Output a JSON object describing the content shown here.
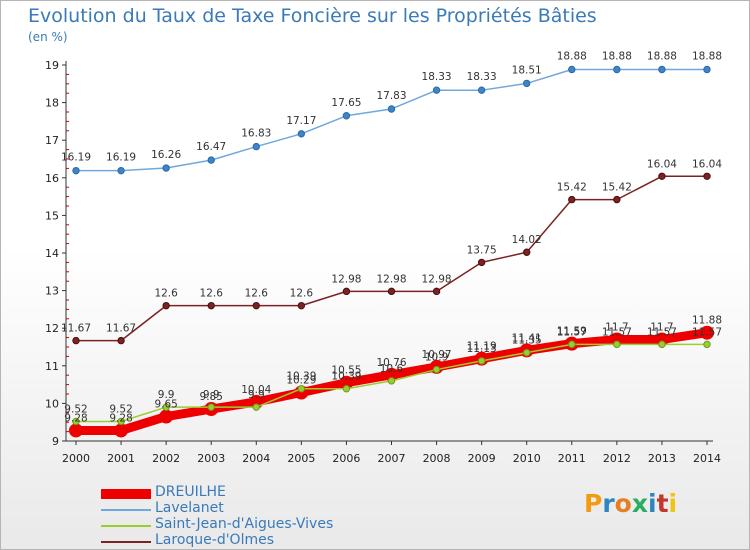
{
  "header": {
    "title": "Evolution du Taux de Taxe Foncière sur les Propriétés Bâties",
    "unit": "(en %)"
  },
  "logo": {
    "text": "Proxiti",
    "colors": [
      "#f39c12",
      "#2e86c1",
      "#e67e22",
      "#27ae60",
      "#2e86c1",
      "#c0392b",
      "#f1c40f"
    ]
  },
  "chart_data": {
    "type": "line",
    "title": "Evolution du Taux de Taxe Foncière sur les Propriétés Bâties",
    "ylabel": "(en %)",
    "xlabel": "",
    "x": [
      "2000",
      "2001",
      "2002",
      "2003",
      "2004",
      "2005",
      "2006",
      "2007",
      "2008",
      "2009",
      "2010",
      "2011",
      "2012",
      "2013",
      "2014"
    ],
    "ylim": [
      9,
      19
    ],
    "yticks": [
      9,
      10,
      11,
      12,
      13,
      14,
      15,
      16,
      17,
      18,
      19
    ],
    "grid": false,
    "legend_position": "bottom-left",
    "series": [
      {
        "name": "DREUILHE",
        "color": "#ee0000",
        "values": [
          9.28,
          9.28,
          9.65,
          9.85,
          10.04,
          10.29,
          10.55,
          10.76,
          10.97,
          11.19,
          11.41,
          11.59,
          11.7,
          11.7,
          11.88
        ],
        "labels": [
          "9.28",
          "9.28",
          "9.65",
          "9.85",
          "10.04",
          "10.29",
          "10.55",
          "10.76",
          "10.97",
          "11.19",
          "11.41",
          "11.59",
          "11.7",
          "11.7",
          "11.88"
        ]
      },
      {
        "name": "Lavelanet",
        "color": "#6fa8dc",
        "values": [
          16.19,
          16.19,
          16.26,
          16.47,
          16.83,
          17.17,
          17.65,
          17.83,
          18.33,
          18.33,
          18.51,
          18.88,
          18.88,
          18.88,
          18.88
        ],
        "labels": [
          "16.19",
          "16.19",
          "16.26",
          "16.47",
          "16.83",
          "17.17",
          "17.65",
          "17.83",
          "18.33",
          "18.33",
          "18.51",
          "18.88",
          "18.88",
          "18.88",
          "18.88"
        ]
      },
      {
        "name": "Saint-Jean-d'Aigues-Vives",
        "color": "#9acd32",
        "values": [
          9.52,
          9.52,
          9.9,
          9.9,
          9.9,
          10.39,
          10.39,
          10.6,
          10.9,
          11.13,
          11.35,
          11.57,
          11.57,
          11.57,
          11.57
        ],
        "labels": [
          "9.52",
          "9.52",
          "9.9",
          "9.9",
          "9.9",
          "10.39",
          "10.39",
          "10.6",
          "10.9",
          "11.13",
          "11.35",
          "11.57",
          "11.57",
          "11.57",
          "11.57"
        ]
      },
      {
        "name": "Laroque-d'Olmes",
        "color": "#7b2222",
        "values": [
          11.67,
          11.67,
          12.6,
          12.6,
          12.6,
          12.6,
          12.98,
          12.98,
          12.98,
          13.75,
          14.02,
          15.42,
          15.42,
          16.04,
          16.04
        ],
        "labels": [
          "11.67",
          "11.67",
          "12.6",
          "12.6",
          "12.6",
          "12.6",
          "12.98",
          "12.98",
          "12.98",
          "13.75",
          "14.02",
          "15.42",
          "15.42",
          "16.04",
          "16.04"
        ]
      }
    ]
  }
}
